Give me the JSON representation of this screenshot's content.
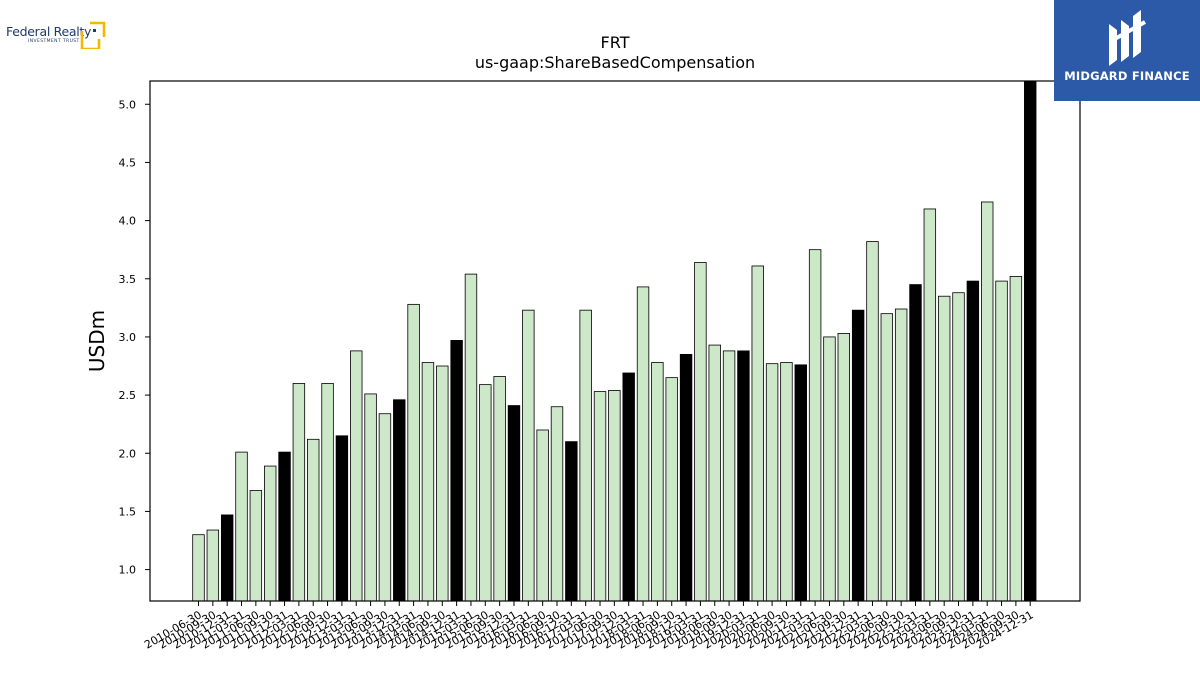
{
  "logos": {
    "company_name": "Federal Realty",
    "company_sub": "INVESTMENT TRUST",
    "brand_name": "MIDGARD FINANCE"
  },
  "colors": {
    "bar_normal": "#cce8c8",
    "bar_highlight": "#000000",
    "bar_edge": "#000000",
    "brand_bg": "#2c5aa8",
    "logo_gold": "#f5b800"
  },
  "chart_data": {
    "type": "bar",
    "title": "FRT",
    "subtitle": "us-gaap:ShareBasedCompensation",
    "ylabel": "USDm",
    "xlabel": "",
    "ylim": [
      0.73,
      5.2
    ],
    "yticks": [
      "1.0",
      "1.5",
      "2.0",
      "2.5",
      "3.0",
      "3.5",
      "4.0",
      "4.5",
      "5.0"
    ],
    "grid": false,
    "legend": "none",
    "categories": [
      "2010-06-30",
      "2010-09-30",
      "2010-12-31",
      "2011-03-31",
      "2011-06-30",
      "2011-09-30",
      "2011-12-31",
      "2012-03-31",
      "2012-06-30",
      "2012-09-30",
      "2012-12-31",
      "2013-03-31",
      "2013-06-30",
      "2013-09-30",
      "2013-12-31",
      "2014-03-31",
      "2014-06-30",
      "2014-09-30",
      "2014-12-31",
      "2015-03-31",
      "2015-06-30",
      "2015-09-30",
      "2015-12-31",
      "2016-03-31",
      "2016-06-30",
      "2016-09-30",
      "2016-12-31",
      "2017-03-31",
      "2017-06-30",
      "2017-09-30",
      "2017-12-31",
      "2018-03-31",
      "2018-06-30",
      "2018-09-30",
      "2018-12-31",
      "2019-03-31",
      "2019-06-30",
      "2019-09-30",
      "2019-12-31",
      "2020-03-31",
      "2020-06-30",
      "2020-09-30",
      "2020-12-31",
      "2021-03-31",
      "2021-06-30",
      "2021-09-30",
      "2021-12-31",
      "2022-03-31",
      "2022-06-30",
      "2022-09-30",
      "2022-12-31",
      "2023-03-31",
      "2023-06-30",
      "2023-09-30",
      "2023-12-31",
      "2024-03-31",
      "2024-06-30",
      "2024-09-30",
      "2024-12-31"
    ],
    "values": [
      1.3,
      1.34,
      1.47,
      2.01,
      1.68,
      1.89,
      2.01,
      2.6,
      2.12,
      2.6,
      2.15,
      2.88,
      2.51,
      2.34,
      2.46,
      3.28,
      2.78,
      2.75,
      2.97,
      3.54,
      2.59,
      2.66,
      2.41,
      3.23,
      2.2,
      2.4,
      2.1,
      3.23,
      2.53,
      2.54,
      2.69,
      3.43,
      2.78,
      2.65,
      2.85,
      3.64,
      2.93,
      2.88,
      2.88,
      3.61,
      2.77,
      2.78,
      2.76,
      3.75,
      3.0,
      3.03,
      3.23,
      3.82,
      3.2,
      3.24,
      3.45,
      4.1,
      3.35,
      3.38,
      3.48,
      4.16,
      3.48,
      3.52,
      5.2
    ],
    "highlight_every": 4,
    "highlight_offset": 2
  }
}
